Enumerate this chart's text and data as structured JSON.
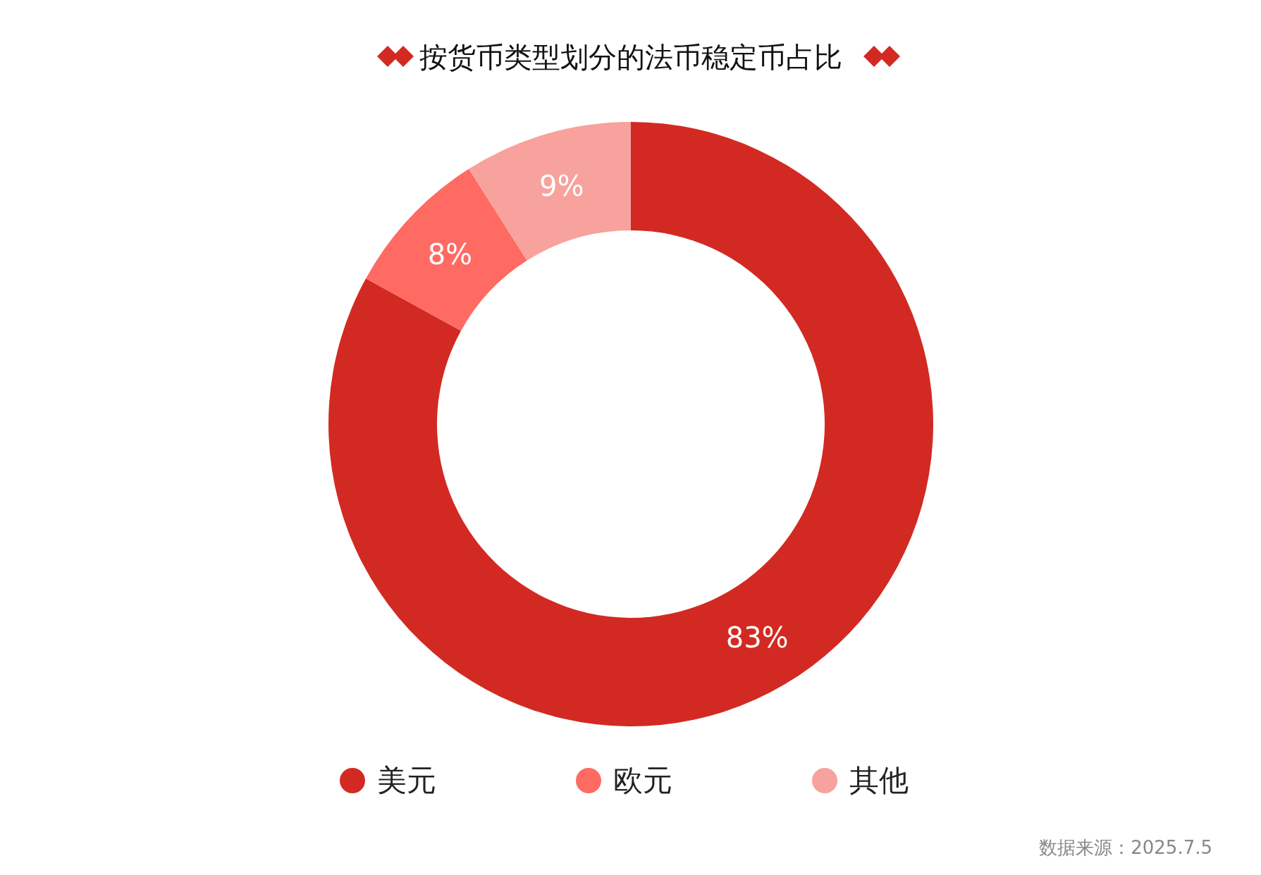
{
  "chart_data": {
    "type": "donut",
    "title": "按货币类型划分的法币稳定币占比",
    "categories": [
      "美元",
      "欧元",
      "其他"
    ],
    "values": [
      83,
      8,
      9
    ],
    "colors": [
      "#d22a22",
      "#ff6a63",
      "#f7a29c"
    ],
    "value_labels": [
      "83%",
      "8%",
      "9%"
    ],
    "legend": "bottom",
    "annotations": [
      "数据来源：2025.7.5"
    ]
  }
}
